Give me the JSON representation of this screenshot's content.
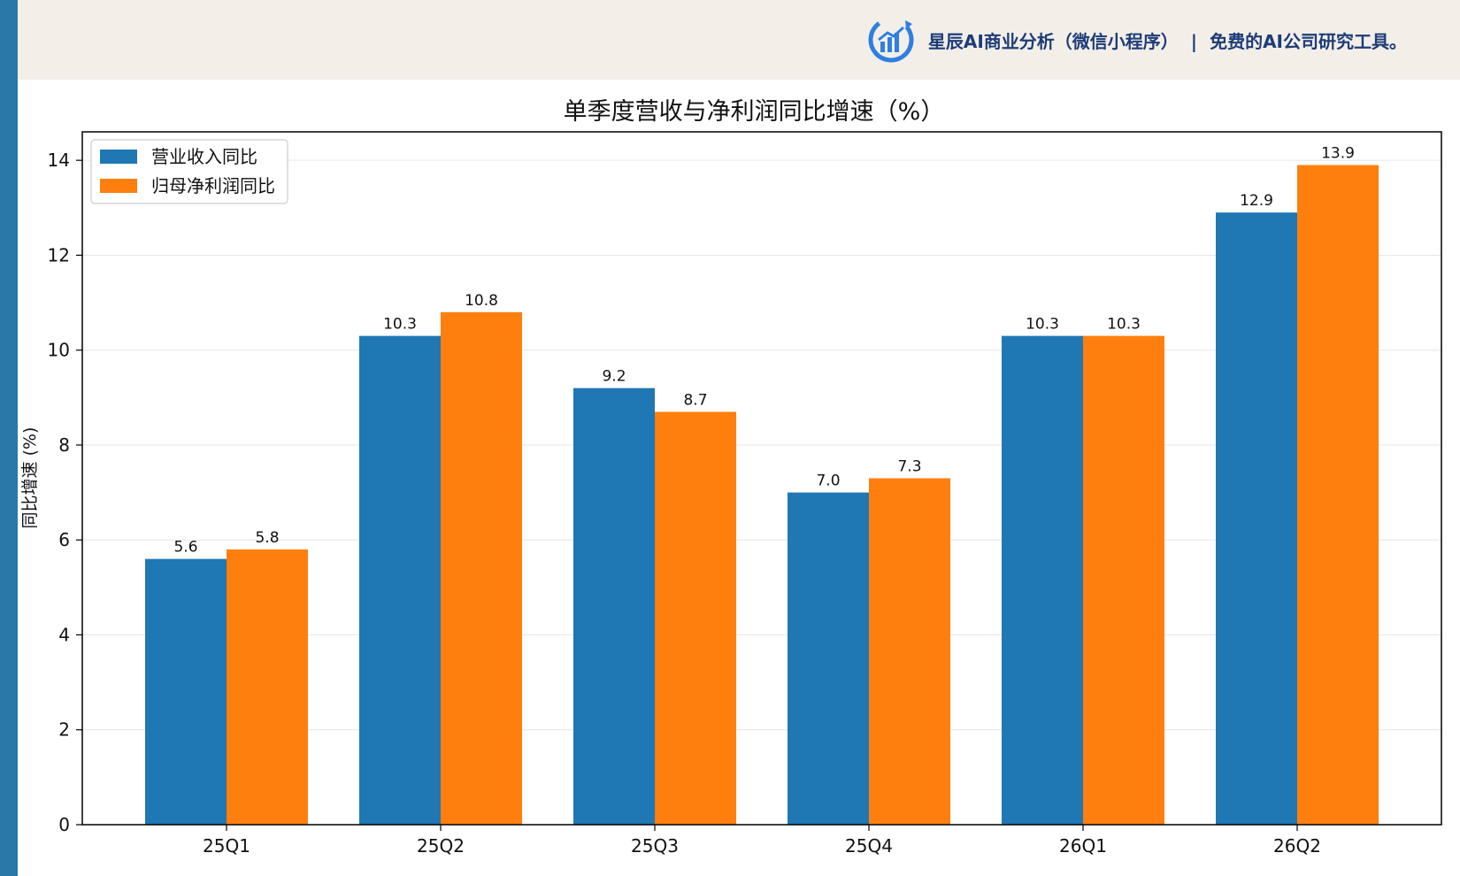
{
  "brand": {
    "name": "星辰AI商业分析（微信小程序）",
    "separator": "|",
    "tagline": "免费的AI公司研究工具。"
  },
  "colors": {
    "revenue": "#1f77b4",
    "profit": "#ff7f0e",
    "left_bar": "#2a78a8",
    "header_bg": "#f3efe8",
    "brand_text": "#1d3c78"
  },
  "chart_data": {
    "type": "bar",
    "title": "单季度营收与净利润同比增速（%）",
    "xlabel": "",
    "ylabel": "同比增速 (%)",
    "categories": [
      "25Q1",
      "25Q2",
      "25Q3",
      "25Q4",
      "26Q1",
      "26Q2"
    ],
    "series": [
      {
        "name": "营业收入同比",
        "values": [
          5.6,
          10.3,
          9.2,
          7.0,
          10.3,
          12.9
        ]
      },
      {
        "name": "归母净利润同比",
        "values": [
          5.8,
          10.8,
          8.7,
          7.3,
          10.3,
          13.9
        ]
      }
    ],
    "data_labels": [
      [
        "5.6",
        "10.3",
        "9.2",
        "7.0",
        "10.3",
        "12.9"
      ],
      [
        "5.8",
        "10.8",
        "8.7",
        "7.3",
        "10.3",
        "13.9"
      ]
    ],
    "yticks": [
      0,
      2,
      4,
      6,
      8,
      10,
      12,
      14
    ],
    "ylim": [
      0,
      14.6
    ],
    "grid": "y",
    "legend": "top-left"
  }
}
